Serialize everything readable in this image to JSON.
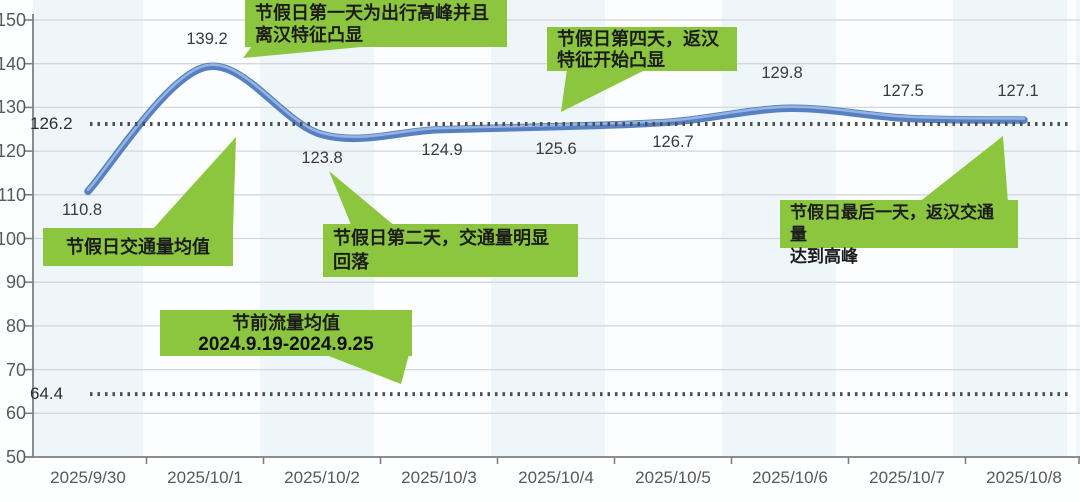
{
  "chart_data": {
    "type": "line",
    "x": [
      "2025/9/30",
      "2025/10/1",
      "2025/10/2",
      "2025/10/3",
      "2025/10/4",
      "2025/10/5",
      "2025/10/6",
      "2025/10/7",
      "2025/10/8"
    ],
    "series": [
      {
        "name": "daily-traffic-volume",
        "values": [
          110.8,
          139.2,
          123.8,
          124.9,
          125.6,
          126.7,
          129.8,
          127.5,
          127.1
        ]
      }
    ],
    "point_labels": [
      "110.8",
      "139.2",
      "123.8",
      "124.9",
      "125.6",
      "126.7",
      "129.8",
      "127.5",
      "127.1"
    ],
    "yticks": [
      "150",
      "140",
      "130",
      "120",
      "110",
      "100",
      "90",
      "80",
      "70",
      "60",
      "50"
    ],
    "ylim": [
      50,
      150
    ],
    "grid": true,
    "reference_lines": [
      {
        "name": "holiday-average",
        "label": "126.2",
        "value": 126.2,
        "style": "dotted"
      },
      {
        "name": "pre-holiday-average",
        "label": "64.4",
        "value": 64.4,
        "style": "dotted"
      }
    ]
  },
  "colors": {
    "callout_green": "#8cc63f",
    "line_blue": "#4d79bf",
    "line_highlight": "#95b4e0",
    "dotted_gray": "#4d4d4d",
    "grid_gray": "#d2d7dc",
    "axis_gray": "#808080"
  },
  "callouts": {
    "day1": {
      "line1": "节假日第一天为出行高峰并且",
      "line2": "离汉特征凸显"
    },
    "day4": {
      "line1": "节假日第四天，返汉",
      "line2": "特征开始凸显"
    },
    "holiday_avg": {
      "line1": "节假日交通量均值"
    },
    "day2": {
      "line1": "节假日第二天，交通量明显",
      "line2": "回落"
    },
    "pre_holiday": {
      "line1": "节前流量均值",
      "line2": "2024.9.19-2024.9.25"
    },
    "last_day": {
      "line1": "节假日最后一天，返汉交通量",
      "line2": "达到高峰"
    }
  }
}
